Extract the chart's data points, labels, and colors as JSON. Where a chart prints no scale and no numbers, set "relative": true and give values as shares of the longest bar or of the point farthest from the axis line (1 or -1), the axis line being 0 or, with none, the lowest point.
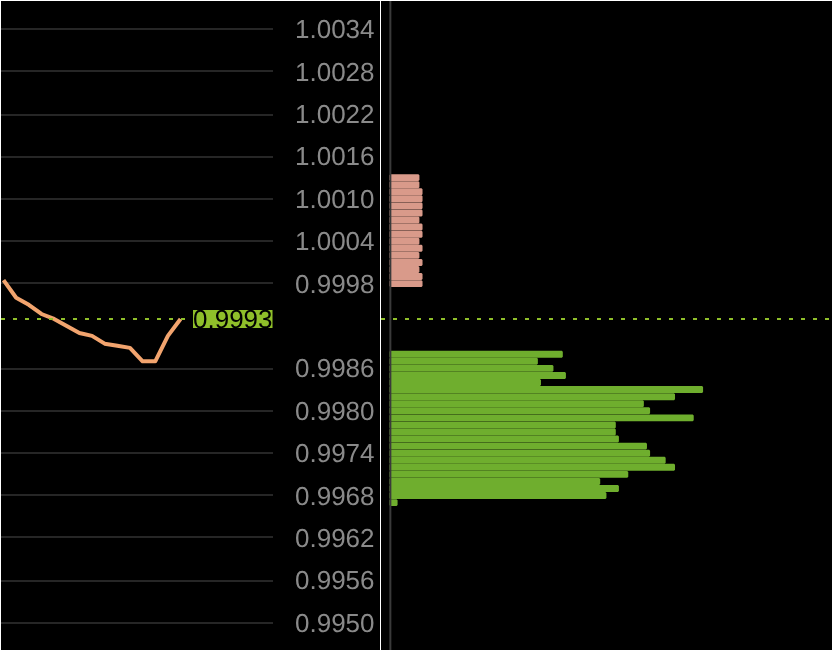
{
  "chart_data": [
    {
      "type": "line",
      "categories": [
        null,
        null,
        null,
        null,
        null,
        null,
        null,
        null,
        null,
        null,
        null,
        null,
        null,
        null,
        null
      ],
      "series": [
        {
          "color": "#f2a46e",
          "values": [
            0.99985,
            0.9996,
            0.9995,
            0.99937,
            0.9993,
            0.9992,
            0.9991,
            0.99906,
            0.99895,
            0.99892,
            0.99889,
            0.9987,
            0.9987,
            0.99906,
            0.9993
          ]
        }
      ],
      "ylim": [
        0.9946,
        1.0038
      ],
      "yticks": [
        1.0034,
        1.0028,
        1.0022,
        1.0016,
        {
          "value": 1.001,
          "label": "1.0010"
        },
        1.0004,
        0.9998,
        0.9986,
        {
          "value": 0.998,
          "label": "0.9980"
        },
        0.9974,
        0.9968,
        0.9962,
        0.9956,
        {
          "value": 0.995,
          "label": "0.9950"
        }
      ],
      "grid": "y",
      "tick_labels": "y",
      "ref_lines": [
        {
          "axis": "y",
          "value": 0.9993,
          "label": "0.9993",
          "color": "#8fbf2a",
          "line_style": "dotted"
        }
      ]
    },
    {
      "type": "bar",
      "orientation": "horizontal",
      "relative": true,
      "ylim": [
        0.9946,
        1.0038
      ],
      "tick_labels": false,
      "series": [
        {
          "color": "#d99a8a",
          "x": [
            1.0013,
            1.0012,
            1.0011,
            1.001,
            1.0009,
            1.0008,
            1.0007,
            1.0006,
            1.0005,
            1.0004,
            1.0003,
            1.0002,
            1.0001,
            1.0,
            0.9999,
            0.9998
          ],
          "values": [
            0.09,
            0.09,
            0.1,
            0.1,
            0.1,
            0.1,
            0.09,
            0.1,
            0.1,
            0.09,
            0.1,
            0.09,
            0.1,
            0.09,
            0.1,
            0.1
          ]
        },
        {
          "color": "#6fae2e",
          "x": [
            0.9988,
            0.9987,
            0.9986,
            0.9985,
            0.9984,
            0.9983,
            0.9982,
            0.9981,
            0.998,
            0.9979,
            0.9978,
            0.9977,
            0.9976,
            0.9975,
            0.9974,
            0.9973,
            0.9972,
            0.9971,
            0.997,
            0.9969,
            0.9968,
            0.9967
          ],
          "values": [
            0.55,
            0.47,
            0.52,
            0.56,
            0.48,
            1.0,
            0.91,
            0.81,
            0.83,
            0.97,
            0.72,
            0.72,
            0.73,
            0.82,
            0.83,
            0.88,
            0.91,
            0.76,
            0.67,
            0.73,
            0.69,
            0.02
          ]
        }
      ],
      "ref_lines": [
        {
          "axis": "y",
          "value": 0.9993,
          "color": "#8fbf2a",
          "line_style": "dotted"
        }
      ]
    }
  ]
}
